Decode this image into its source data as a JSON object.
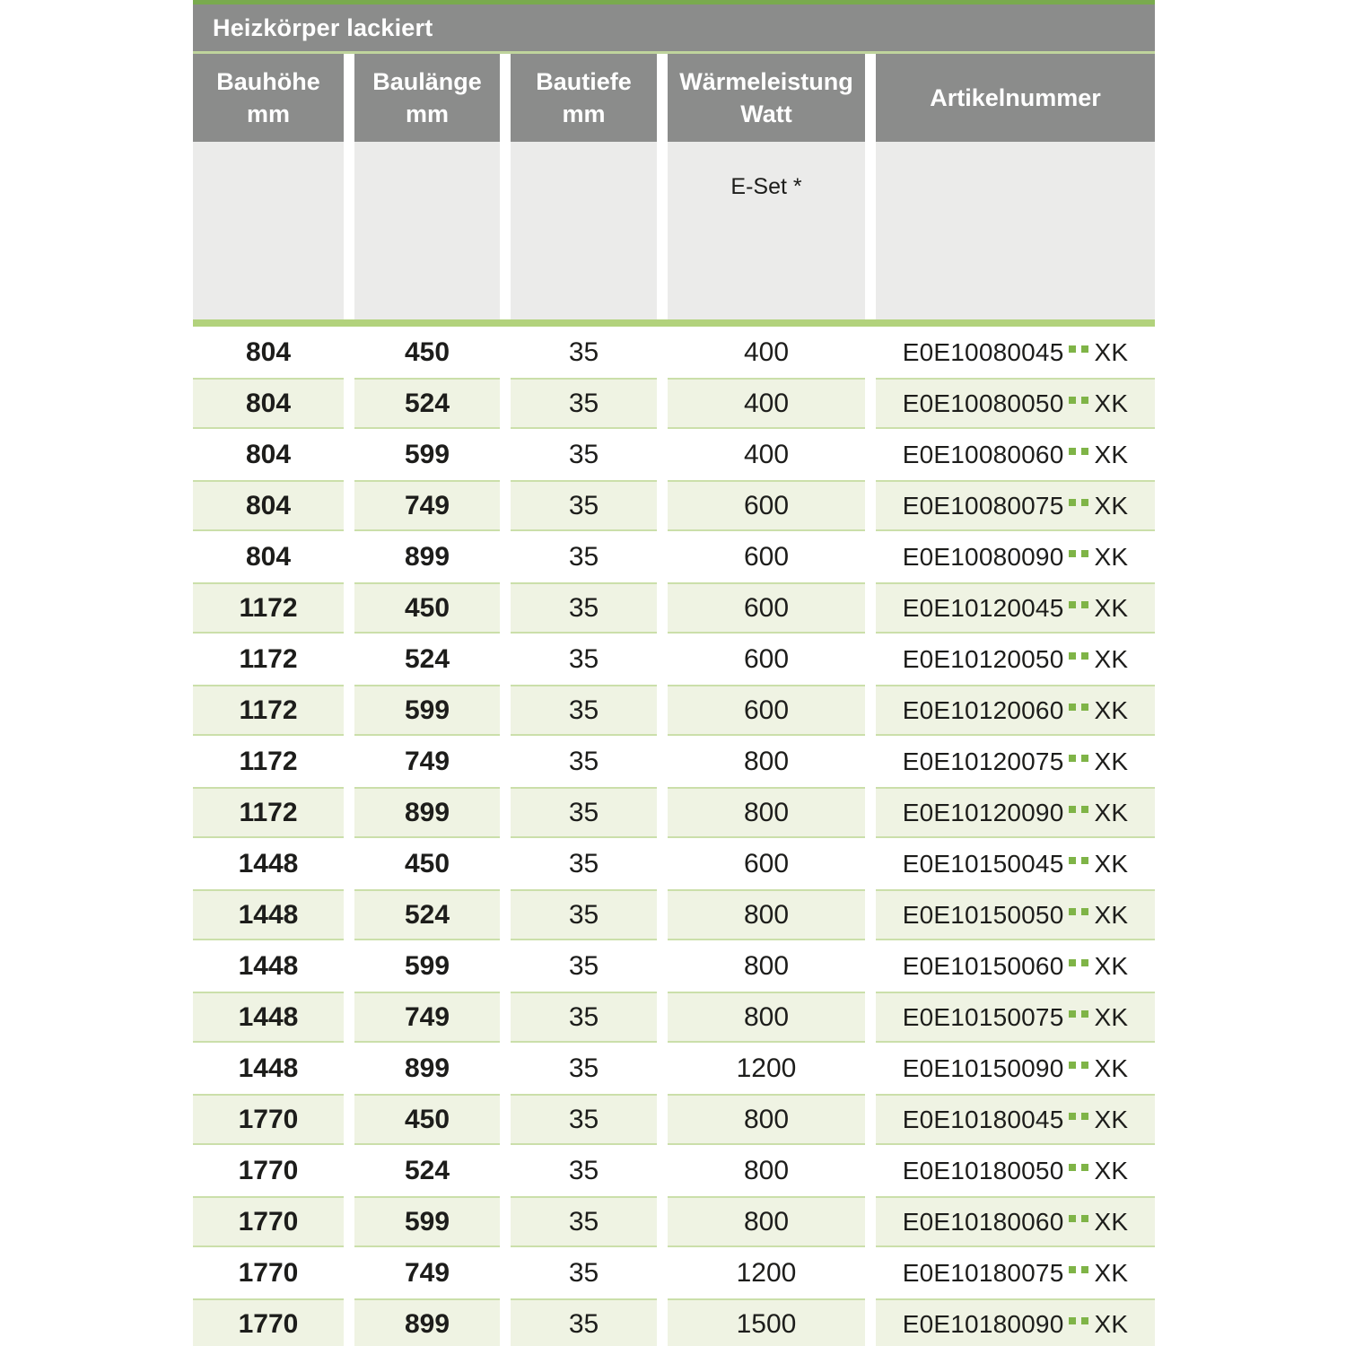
{
  "title": "Heizkörper lackiert",
  "columns": [
    {
      "line1": "Bauhöhe",
      "line2": "mm"
    },
    {
      "line1": "Baulänge",
      "line2": "mm"
    },
    {
      "line1": "Bautiefe",
      "line2": "mm"
    },
    {
      "line1": "Wärmeleistung",
      "line2": "Watt"
    },
    {
      "line1": "Artikelnummer",
      "line2": ""
    }
  ],
  "subheader": {
    "eset_label": "E-Set *"
  },
  "colors": {
    "top_line_green": "#79aa4e",
    "header_gray": "#8b8c8b",
    "divider_green": "#bfd49c",
    "subheader_gray": "#ebebea",
    "green_bar": "#b2d27c",
    "row_tint": "#eff3e3",
    "row_border": "#cbdfaa",
    "dot_green": "#7fb447",
    "text": "#1d1d1b"
  },
  "rows": [
    {
      "bauhoehe": "804",
      "baulaenge": "450",
      "bautiefe": "35",
      "watt": "400",
      "artikel": "E0E10080045",
      "artikel_suffix": "XK"
    },
    {
      "bauhoehe": "804",
      "baulaenge": "524",
      "bautiefe": "35",
      "watt": "400",
      "artikel": "E0E10080050",
      "artikel_suffix": "XK"
    },
    {
      "bauhoehe": "804",
      "baulaenge": "599",
      "bautiefe": "35",
      "watt": "400",
      "artikel": "E0E10080060",
      "artikel_suffix": "XK"
    },
    {
      "bauhoehe": "804",
      "baulaenge": "749",
      "bautiefe": "35",
      "watt": "600",
      "artikel": "E0E10080075",
      "artikel_suffix": "XK"
    },
    {
      "bauhoehe": "804",
      "baulaenge": "899",
      "bautiefe": "35",
      "watt": "600",
      "artikel": "E0E10080090",
      "artikel_suffix": "XK"
    },
    {
      "bauhoehe": "1172",
      "baulaenge": "450",
      "bautiefe": "35",
      "watt": "600",
      "artikel": "E0E10120045",
      "artikel_suffix": "XK"
    },
    {
      "bauhoehe": "1172",
      "baulaenge": "524",
      "bautiefe": "35",
      "watt": "600",
      "artikel": "E0E10120050",
      "artikel_suffix": "XK"
    },
    {
      "bauhoehe": "1172",
      "baulaenge": "599",
      "bautiefe": "35",
      "watt": "600",
      "artikel": "E0E10120060",
      "artikel_suffix": "XK"
    },
    {
      "bauhoehe": "1172",
      "baulaenge": "749",
      "bautiefe": "35",
      "watt": "800",
      "artikel": "E0E10120075",
      "artikel_suffix": "XK"
    },
    {
      "bauhoehe": "1172",
      "baulaenge": "899",
      "bautiefe": "35",
      "watt": "800",
      "artikel": "E0E10120090",
      "artikel_suffix": "XK"
    },
    {
      "bauhoehe": "1448",
      "baulaenge": "450",
      "bautiefe": "35",
      "watt": "600",
      "artikel": "E0E10150045",
      "artikel_suffix": "XK"
    },
    {
      "bauhoehe": "1448",
      "baulaenge": "524",
      "bautiefe": "35",
      "watt": "800",
      "artikel": "E0E10150050",
      "artikel_suffix": "XK"
    },
    {
      "bauhoehe": "1448",
      "baulaenge": "599",
      "bautiefe": "35",
      "watt": "800",
      "artikel": "E0E10150060",
      "artikel_suffix": "XK"
    },
    {
      "bauhoehe": "1448",
      "baulaenge": "749",
      "bautiefe": "35",
      "watt": "800",
      "artikel": "E0E10150075",
      "artikel_suffix": "XK"
    },
    {
      "bauhoehe": "1448",
      "baulaenge": "899",
      "bautiefe": "35",
      "watt": "1200",
      "artikel": "E0E10150090",
      "artikel_suffix": "XK"
    },
    {
      "bauhoehe": "1770",
      "baulaenge": "450",
      "bautiefe": "35",
      "watt": "800",
      "artikel": "E0E10180045",
      "artikel_suffix": "XK"
    },
    {
      "bauhoehe": "1770",
      "baulaenge": "524",
      "bautiefe": "35",
      "watt": "800",
      "artikel": "E0E10180050",
      "artikel_suffix": "XK"
    },
    {
      "bauhoehe": "1770",
      "baulaenge": "599",
      "bautiefe": "35",
      "watt": "800",
      "artikel": "E0E10180060",
      "artikel_suffix": "XK"
    },
    {
      "bauhoehe": "1770",
      "baulaenge": "749",
      "bautiefe": "35",
      "watt": "1200",
      "artikel": "E0E10180075",
      "artikel_suffix": "XK"
    },
    {
      "bauhoehe": "1770",
      "baulaenge": "899",
      "bautiefe": "35",
      "watt": "1500",
      "artikel": "E0E10180090",
      "artikel_suffix": "XK"
    }
  ]
}
